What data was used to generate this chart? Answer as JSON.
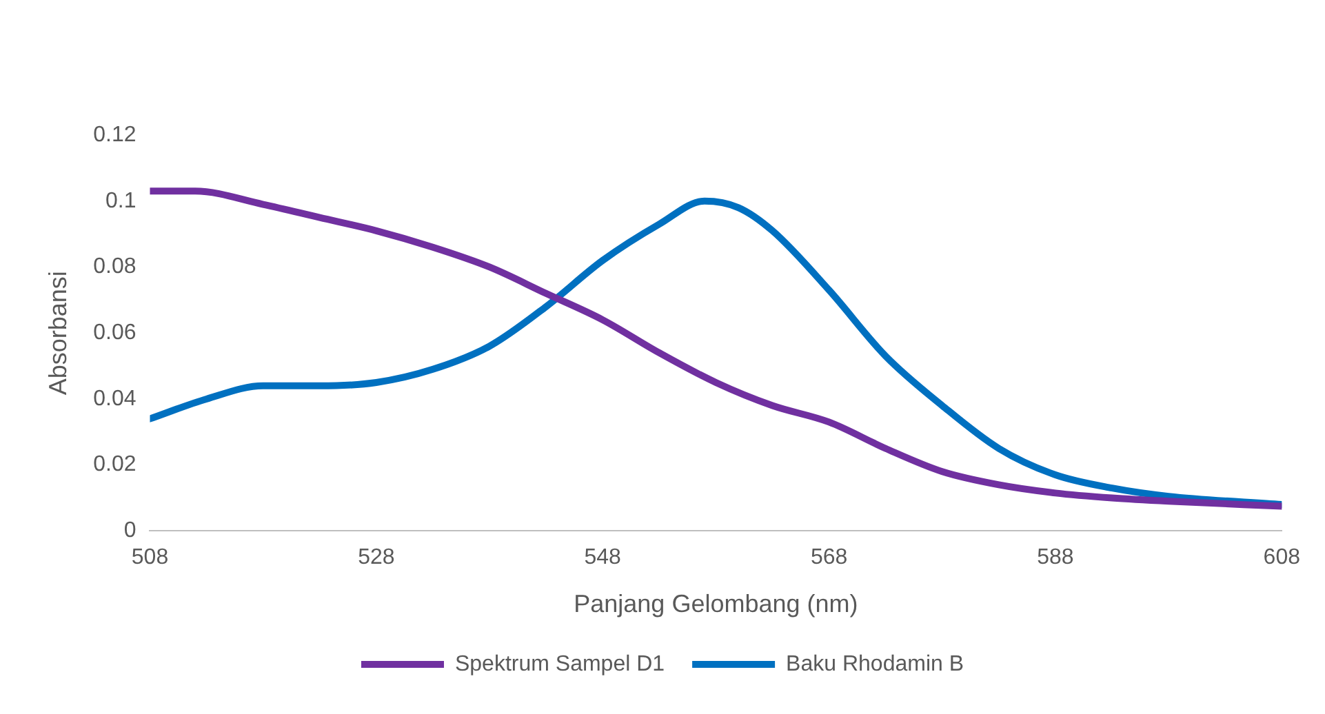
{
  "chart_data": {
    "type": "line",
    "xlabel": "Panjang Gelombang (nm)",
    "ylabel": "Absorbansi",
    "xlim": [
      508,
      608
    ],
    "xticks": [
      508,
      528,
      548,
      568,
      588,
      608
    ],
    "ylim": [
      0,
      0.12
    ],
    "yticks": [
      0,
      0.02,
      0.04,
      0.06,
      0.08,
      0.1,
      0.12
    ],
    "grid": false,
    "legend": "bottom",
    "marker": "none",
    "line_style": "solid",
    "series": [
      {
        "name": "Spektrum Sampel D1",
        "color": "#7030a0",
        "x": [
          508,
          512,
          518,
          523,
          528,
          533,
          538,
          543,
          548,
          553,
          558,
          563,
          568,
          573,
          578,
          583,
          588,
          593,
          598,
          608
        ],
        "values": [
          0.103,
          0.103,
          0.099,
          0.095,
          0.091,
          0.086,
          0.08,
          0.072,
          0.064,
          0.054,
          0.045,
          0.038,
          0.033,
          0.025,
          0.018,
          0.014,
          0.0115,
          0.01,
          0.009,
          0.0075
        ]
      },
      {
        "name": "Baku Rhodamin B",
        "color": "#0070c0",
        "x": [
          508,
          513,
          518,
          523,
          528,
          533,
          538,
          543,
          548,
          553,
          557,
          560,
          563,
          568,
          573,
          578,
          583,
          588,
          593,
          598,
          608
        ],
        "values": [
          0.034,
          0.04,
          0.044,
          0.044,
          0.045,
          0.049,
          0.056,
          0.068,
          0.082,
          0.093,
          0.1,
          0.098,
          0.091,
          0.073,
          0.053,
          0.038,
          0.025,
          0.017,
          0.013,
          0.0105,
          0.008
        ]
      }
    ]
  }
}
